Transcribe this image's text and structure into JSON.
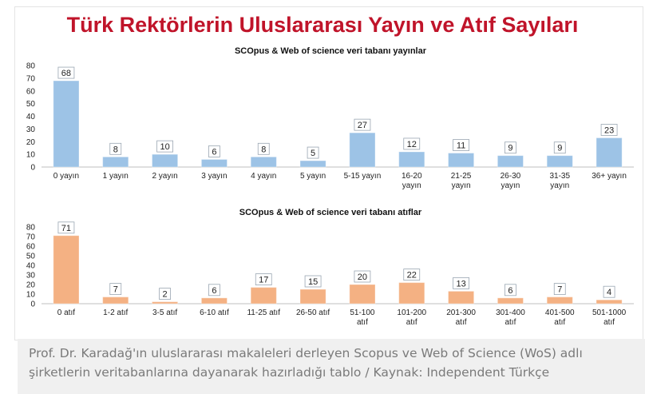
{
  "title": "Türk Rektörlerin Uluslararası Yayın ve Atıf Sayıları",
  "caption": "Prof. Dr. Karadağ'ın uluslararası makaleleri derleyen Scopus ve Web of Science (WoS) adlı şirketlerin veritabanlarına dayanarak hazırladığı tablo / Kaynak: Independent Türkçe",
  "chart_data": [
    {
      "type": "bar",
      "title": "SCOpus & Web of science veri tabanı yayınlar",
      "categories": [
        "0 yayın",
        "1 yayın",
        "2 yayın",
        "3 yayın",
        "4 yayın",
        "5 yayın",
        "5-15 yayın",
        "16-20 yayın",
        "21-25 yayın",
        "26-30 yayın",
        "31-35 yayın",
        "36+ yayın"
      ],
      "values": [
        68,
        8,
        10,
        6,
        8,
        5,
        27,
        12,
        11,
        9,
        9,
        23
      ],
      "yticks": [
        0,
        10,
        20,
        30,
        40,
        50,
        60,
        70,
        80
      ],
      "ylim": [
        0,
        80
      ],
      "color": "#9dc3e6",
      "grid": false,
      "legend": "none"
    },
    {
      "type": "bar",
      "title": "SCOpus & Web of science veri tabanı atıflar",
      "categories": [
        "0 atıf",
        "1-2 atıf",
        "3-5 atıf",
        "6-10 atıf",
        "11-25 atıf",
        "26-50 atıf",
        "51-100 atıf",
        "101-200 atıf",
        "201-300 atıf",
        "301-400 atıf",
        "401-500 atıf",
        "501-1000 atıf"
      ],
      "values": [
        71,
        7,
        2,
        6,
        17,
        15,
        20,
        22,
        13,
        6,
        7,
        4
      ],
      "yticks": [
        0,
        10,
        20,
        30,
        40,
        50,
        60,
        70,
        80
      ],
      "ylim": [
        0,
        80
      ],
      "color": "#f4b183",
      "grid": false,
      "legend": "none"
    }
  ]
}
